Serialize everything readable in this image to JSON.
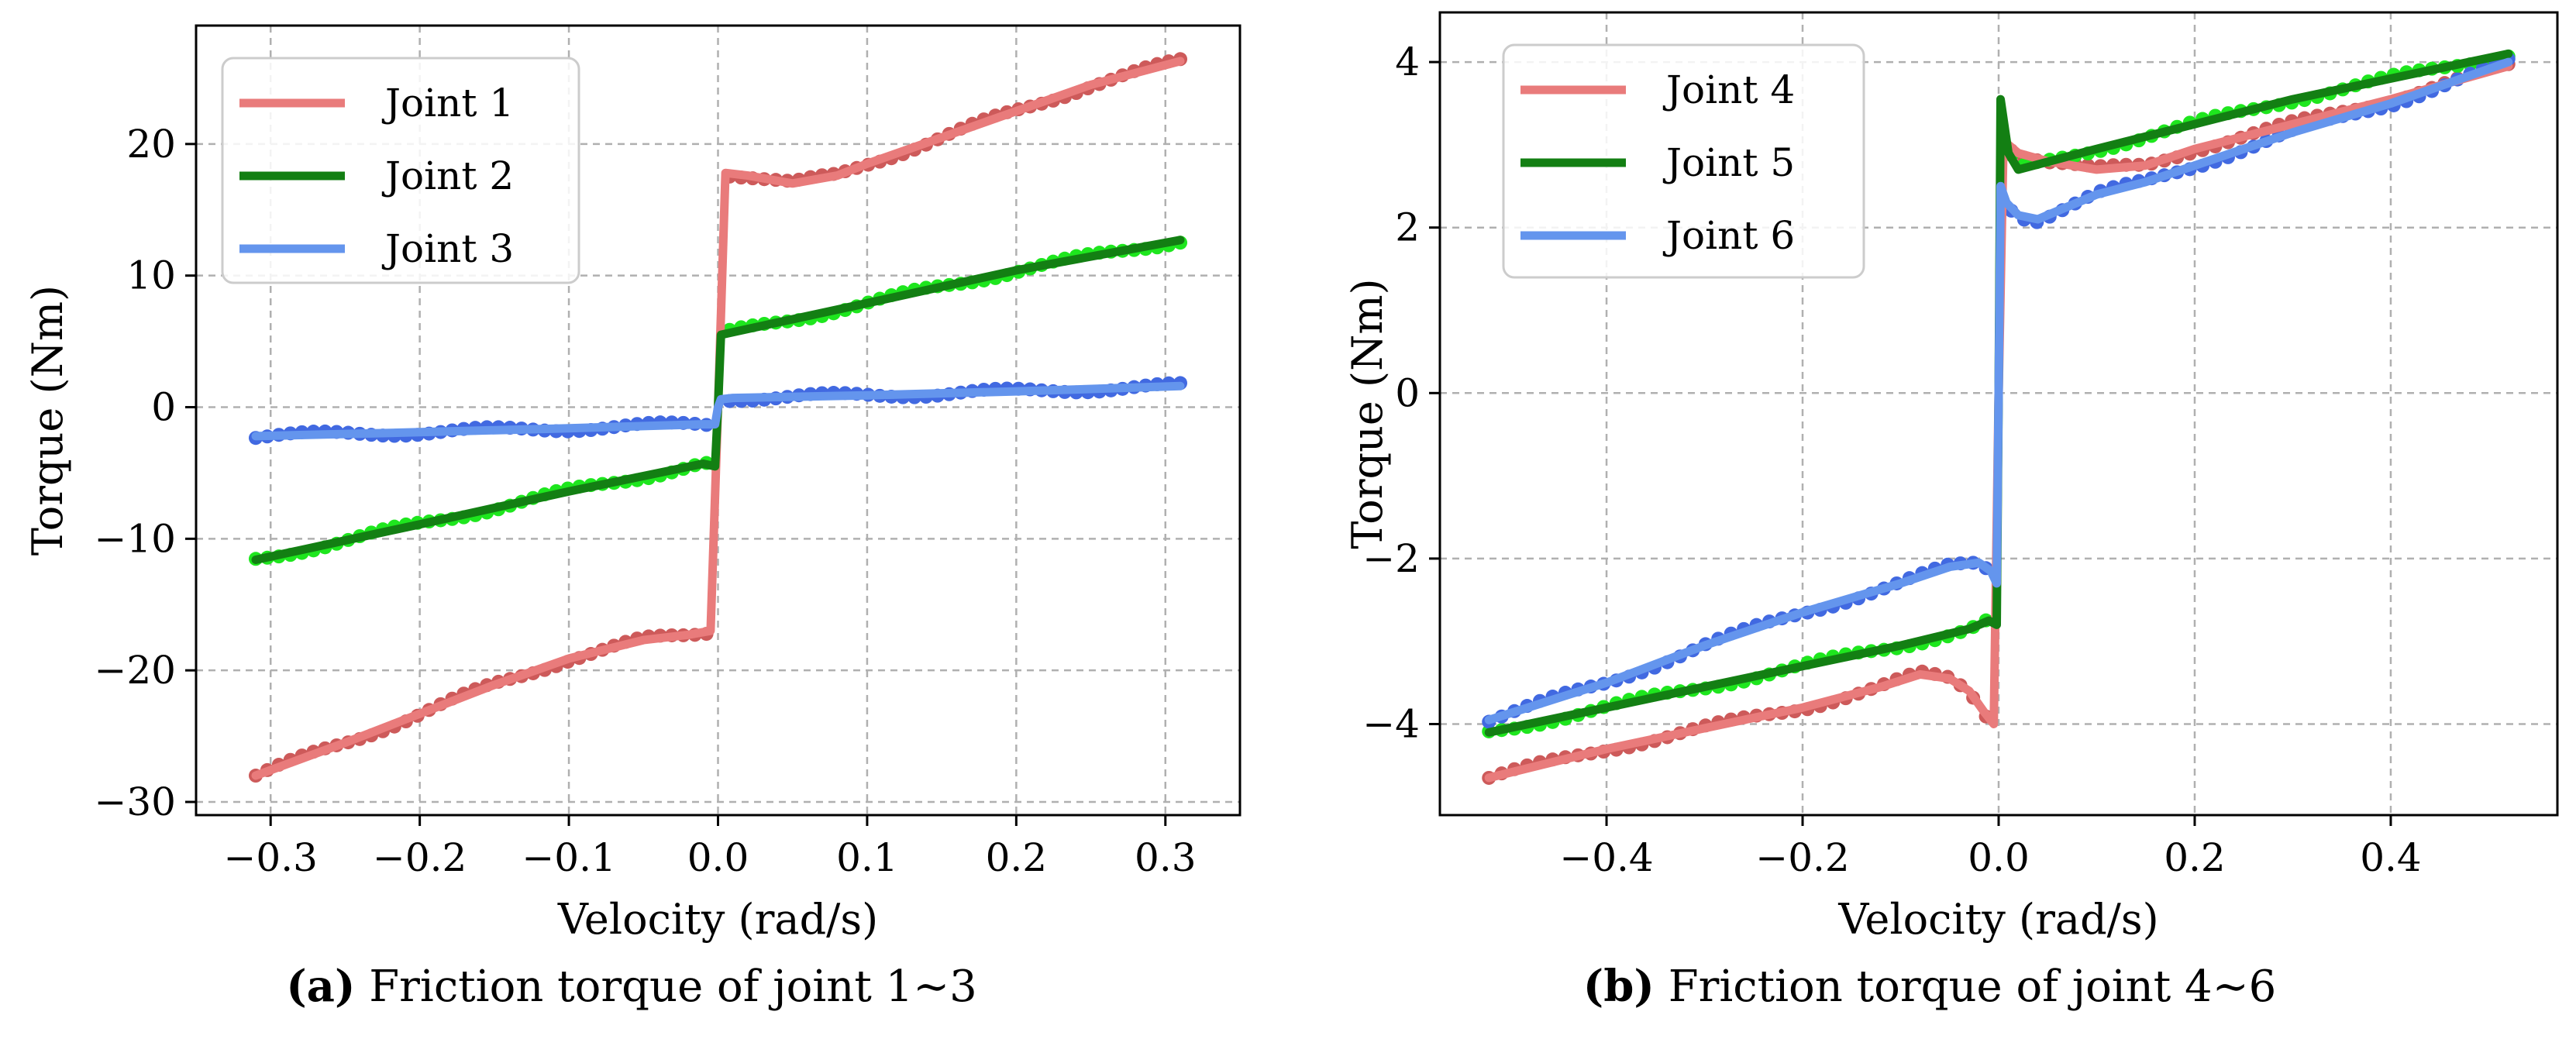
{
  "colors": {
    "joint_a": "#e97b7b",
    "joint_a_dots": "#cd5a5a",
    "joint_b": "#137f13",
    "joint_b_dots": "#1ee61e",
    "joint_c": "#6495ed",
    "joint_c_dots": "#4169e1",
    "grid": "#b0b0b0"
  },
  "captions": [
    {
      "letter": "(a)",
      "text": "Friction torque of joint 1∼3"
    },
    {
      "letter": "(b)",
      "text": "Friction torque of joint 4∼6"
    }
  ],
  "chart_data": [
    {
      "type": "line",
      "title": "",
      "xlabel": "Velocity (rad/s)",
      "ylabel": "Torque (Nm)",
      "xlim": [
        -0.35,
        0.35
      ],
      "ylim": [
        -31,
        29
      ],
      "xticks": [
        -0.3,
        -0.2,
        -0.1,
        0.0,
        0.1,
        0.2,
        0.3
      ],
      "xtick_labels": [
        "−0.3",
        "−0.2",
        "−0.1",
        "0.0",
        "0.1",
        "0.2",
        "0.3"
      ],
      "yticks": [
        -30,
        -20,
        -10,
        0,
        10,
        20
      ],
      "ytick_labels": [
        "−30",
        "−20",
        "−10",
        "0",
        "10",
        "20"
      ],
      "grid": true,
      "legend_position": "top-left",
      "series": [
        {
          "name": "Joint 1",
          "color_key": "joint_a",
          "x": [
            -0.31,
            -0.25,
            -0.2,
            -0.15,
            -0.1,
            -0.05,
            -0.02,
            -0.005,
            0,
            0.005,
            0.02,
            0.05,
            0.08,
            0.1,
            0.15,
            0.2,
            0.25,
            0.31
          ],
          "y": [
            -28,
            -25.5,
            -23.3,
            -21.1,
            -19.1,
            -17.7,
            -17.3,
            -17,
            0,
            17.8,
            17.6,
            17,
            17.6,
            18.5,
            20.5,
            22.5,
            24.5,
            26.3
          ]
        },
        {
          "name": "Joint 2",
          "color_key": "joint_b",
          "x": [
            -0.31,
            -0.2,
            -0.1,
            -0.01,
            -0.002,
            0,
            0.002,
            0.01,
            0.1,
            0.2,
            0.31
          ],
          "y": [
            -11.6,
            -8.9,
            -6.4,
            -4.3,
            -4.5,
            0,
            5.5,
            5.7,
            7.9,
            10.4,
            12.7
          ]
        },
        {
          "name": "Joint 3",
          "color_key": "joint_c",
          "x": [
            -0.31,
            -0.2,
            -0.1,
            -0.01,
            -0.002,
            0,
            0.002,
            0.01,
            0.1,
            0.2,
            0.31
          ],
          "y": [
            -2.2,
            -1.9,
            -1.6,
            -1.3,
            -1.3,
            0,
            0.6,
            0.7,
            0.9,
            1.2,
            1.6
          ]
        }
      ]
    },
    {
      "type": "line",
      "title": "",
      "xlabel": "Velocity (rad/s)",
      "ylabel": "Torque (Nm)",
      "xlim": [
        -0.57,
        0.57
      ],
      "ylim": [
        -5.1,
        4.6
      ],
      "xticks": [
        -0.4,
        -0.2,
        0.0,
        0.2,
        0.4
      ],
      "xtick_labels": [
        "−0.4",
        "−0.2",
        "0.0",
        "0.2",
        "0.4"
      ],
      "yticks": [
        -4,
        -2,
        0,
        2,
        4
      ],
      "ytick_labels": [
        "−4",
        "−2",
        "0",
        "2",
        "4"
      ],
      "grid": true,
      "legend_position": "top-left",
      "series": [
        {
          "name": "Joint 4",
          "color_key": "joint_a",
          "x": [
            -0.52,
            -0.4,
            -0.3,
            -0.2,
            -0.12,
            -0.08,
            -0.05,
            -0.03,
            -0.015,
            -0.005,
            0,
            0.005,
            0.02,
            0.05,
            0.1,
            0.15,
            0.2,
            0.3,
            0.4,
            0.52
          ],
          "y": [
            -4.65,
            -4.3,
            -4.05,
            -3.8,
            -3.55,
            -3.4,
            -3.45,
            -3.6,
            -3.85,
            -4.0,
            0,
            3.05,
            2.9,
            2.8,
            2.7,
            2.75,
            2.95,
            3.25,
            3.55,
            3.95
          ]
        },
        {
          "name": "Joint 5",
          "color_key": "joint_b",
          "x": [
            -0.52,
            -0.4,
            -0.3,
            -0.2,
            -0.1,
            -0.03,
            -0.01,
            -0.002,
            0,
            0.002,
            0.01,
            0.02,
            0.1,
            0.2,
            0.3,
            0.4,
            0.52
          ],
          "y": [
            -4.1,
            -3.8,
            -3.55,
            -3.3,
            -3.05,
            -2.85,
            -2.75,
            -2.8,
            0,
            3.55,
            2.9,
            2.7,
            2.95,
            3.25,
            3.55,
            3.8,
            4.1
          ]
        },
        {
          "name": "Joint 6",
          "color_key": "joint_c",
          "x": [
            -0.52,
            -0.4,
            -0.3,
            -0.2,
            -0.1,
            -0.05,
            -0.02,
            -0.008,
            -0.002,
            0,
            0.002,
            0.008,
            0.02,
            0.04,
            0.07,
            0.1,
            0.15,
            0.2,
            0.3,
            0.4,
            0.52
          ],
          "y": [
            -3.95,
            -3.5,
            -3.05,
            -2.65,
            -2.3,
            -2.1,
            -2.05,
            -2.15,
            -2.3,
            0,
            2.5,
            2.3,
            2.15,
            2.1,
            2.25,
            2.4,
            2.55,
            2.75,
            3.15,
            3.5,
            4.0
          ]
        }
      ]
    }
  ]
}
